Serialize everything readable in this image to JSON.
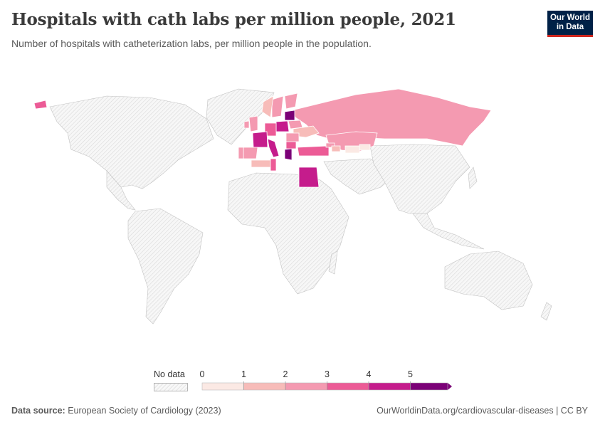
{
  "title": "Hospitals with cath labs per million people, 2021",
  "subtitle": "Number of hospitals with catheterization labs, per million people in the population.",
  "logo": {
    "line1": "Our World",
    "line2": "in Data"
  },
  "legend": {
    "no_data_label": "No data",
    "ticks": [
      "0",
      "1",
      "2",
      "3",
      "4",
      "5"
    ],
    "bin_colors": [
      "#fbe9e4",
      "#f7bcb9",
      "#f49ab1",
      "#ec5b96",
      "#c51c8c",
      "#7b0177"
    ]
  },
  "chart_data": {
    "type": "choropleth",
    "title": "Hospitals with cath labs per million people, 2021",
    "year": 2021,
    "bins": [
      0,
      1,
      2,
      3,
      4,
      5
    ],
    "regions": [
      {
        "name": "Russia",
        "bin": 2
      },
      {
        "name": "Kazakhstan",
        "bin": 2
      },
      {
        "name": "Ukraine",
        "bin": 1
      },
      {
        "name": "Belarus",
        "bin": 2
      },
      {
        "name": "Finland",
        "bin": 2
      },
      {
        "name": "Sweden",
        "bin": 2
      },
      {
        "name": "Norway",
        "bin": 1
      },
      {
        "name": "Lithuania",
        "bin": 5
      },
      {
        "name": "Poland",
        "bin": 4
      },
      {
        "name": "Germany",
        "bin": 3
      },
      {
        "name": "France",
        "bin": 4
      },
      {
        "name": "Spain",
        "bin": 2
      },
      {
        "name": "Portugal",
        "bin": 2
      },
      {
        "name": "Italy",
        "bin": 4
      },
      {
        "name": "United Kingdom",
        "bin": 2
      },
      {
        "name": "Ireland",
        "bin": 2
      },
      {
        "name": "Greece",
        "bin": 5
      },
      {
        "name": "Bulgaria",
        "bin": 3
      },
      {
        "name": "Romania",
        "bin": 2
      },
      {
        "name": "Turkey",
        "bin": 3
      },
      {
        "name": "Georgia",
        "bin": 2
      },
      {
        "name": "Azerbaijan",
        "bin": 1
      },
      {
        "name": "Uzbekistan",
        "bin": 0
      },
      {
        "name": "Kyrgyzstan",
        "bin": 0
      },
      {
        "name": "Algeria",
        "bin": 1
      },
      {
        "name": "Tunisia",
        "bin": 3
      },
      {
        "name": "Egypt",
        "bin": 4
      },
      {
        "name": "Iceland",
        "bin": 3
      }
    ]
  },
  "footer": {
    "source_label": "Data source:",
    "source_text": "European Society of Cardiology (2023)",
    "url_text": "OurWorldinData.org/cardiovascular-diseases | CC BY"
  }
}
